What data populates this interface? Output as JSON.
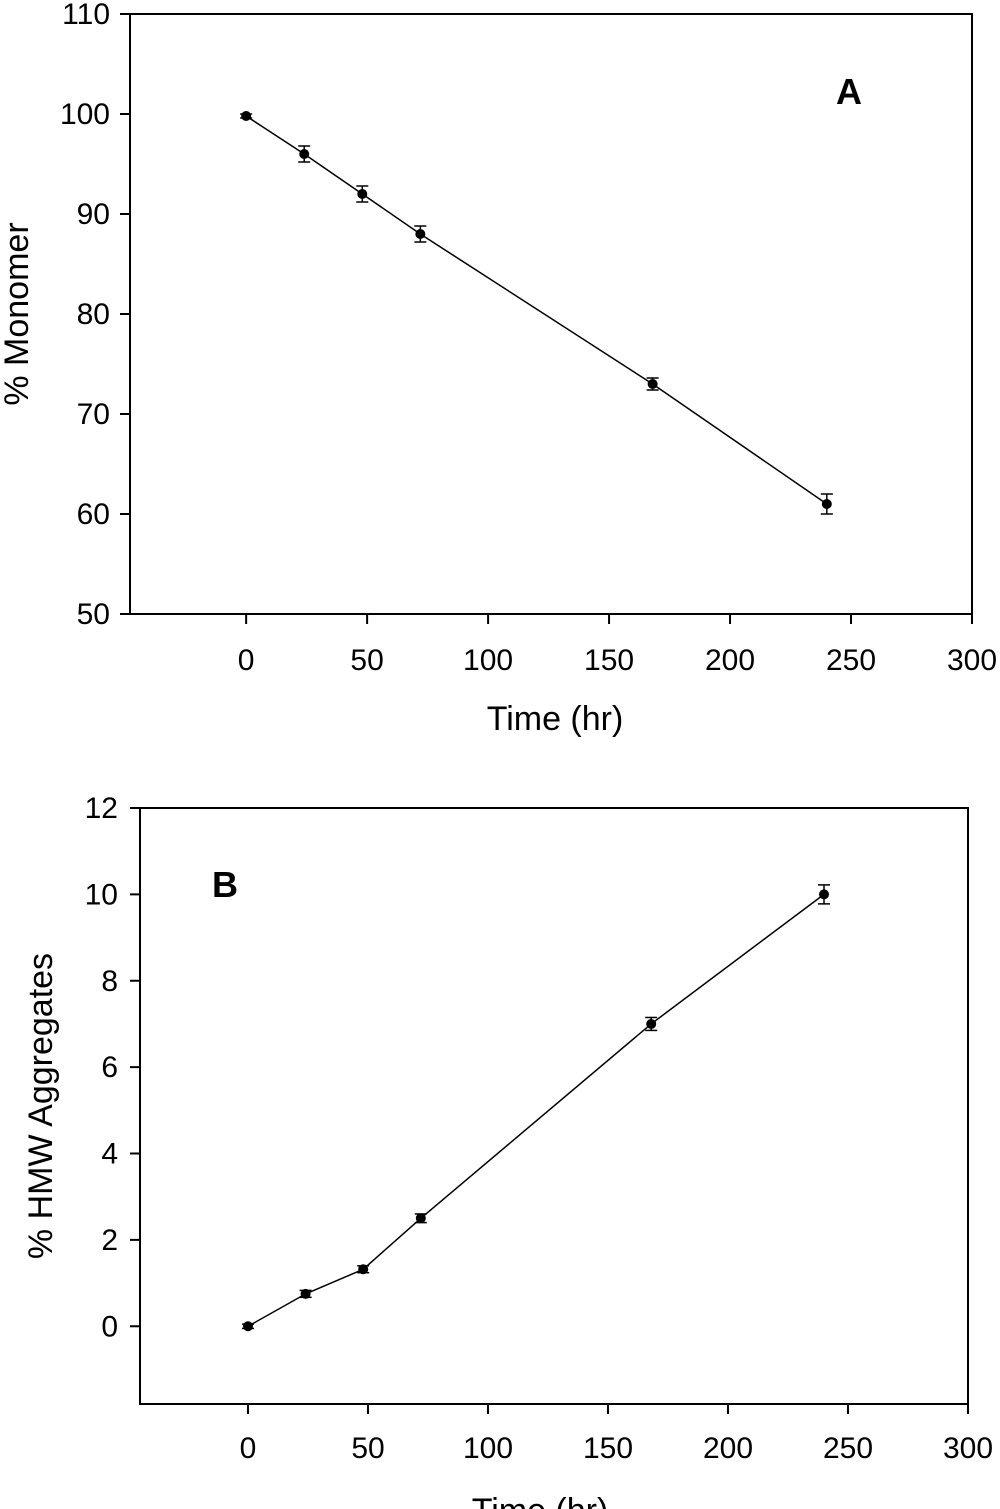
{
  "chart_data": [
    {
      "type": "line",
      "panel_label": "A",
      "xlabel": "Time (hr)",
      "ylabel": "% Monomer",
      "xlim": [
        -48,
        300
      ],
      "ylim": [
        50,
        110
      ],
      "xticks": [
        0,
        50,
        100,
        150,
        200,
        250,
        300
      ],
      "yticks": [
        50,
        60,
        70,
        80,
        90,
        100,
        110
      ],
      "x": [
        0,
        24,
        48,
        72,
        168,
        240
      ],
      "series": [
        {
          "values": [
            99.8,
            96.0,
            92.0,
            88.0,
            73.0,
            61.0
          ],
          "errors": [
            0.2,
            0.8,
            0.8,
            0.8,
            0.6,
            1.0
          ]
        }
      ],
      "grid": false,
      "legend": "none"
    },
    {
      "type": "line",
      "panel_label": "B",
      "xlabel": "Time (hr)",
      "ylabel": "% HMW Aggregates",
      "xlim": [
        -45,
        300
      ],
      "ylim": [
        -1.8,
        12
      ],
      "xticks": [
        0,
        50,
        100,
        150,
        200,
        250,
        300
      ],
      "yticks": [
        0,
        2,
        4,
        6,
        8,
        10,
        12
      ],
      "x": [
        0,
        24,
        48,
        72,
        168,
        240
      ],
      "series": [
        {
          "values": [
            0.0,
            0.75,
            1.32,
            2.5,
            7.0,
            10.0
          ],
          "errors": [
            0.05,
            0.08,
            0.08,
            0.1,
            0.15,
            0.22
          ]
        }
      ],
      "grid": false,
      "legend": "none"
    }
  ]
}
